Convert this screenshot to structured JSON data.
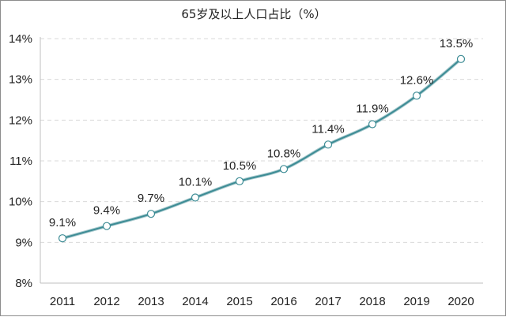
{
  "chart_data": {
    "type": "line",
    "title": "65岁及以上人口占比（%）",
    "categories": [
      "2011",
      "2012",
      "2013",
      "2014",
      "2015",
      "2016",
      "2017",
      "2018",
      "2019",
      "2020"
    ],
    "values": [
      9.1,
      9.4,
      9.7,
      10.1,
      10.5,
      10.8,
      11.4,
      11.9,
      12.6,
      13.5
    ],
    "data_labels": [
      "9.1%",
      "9.4%",
      "9.7%",
      "10.1%",
      "10.5%",
      "10.8%",
      "11.4%",
      "11.9%",
      "12.6%",
      "13.5%"
    ],
    "ylim": [
      8,
      14
    ],
    "y_ticks": [
      "8%",
      "9%",
      "10%",
      "11%",
      "12%",
      "13%",
      "14%"
    ],
    "xlabel": "",
    "ylabel": "",
    "grid": "horizontal dashed",
    "colors": {
      "line": "#3d8c95",
      "marker_fill": "#ffffff",
      "marker_stroke": "#3d8c95",
      "grid": "#d9d9d9",
      "axis": "#bfbfbf"
    }
  }
}
